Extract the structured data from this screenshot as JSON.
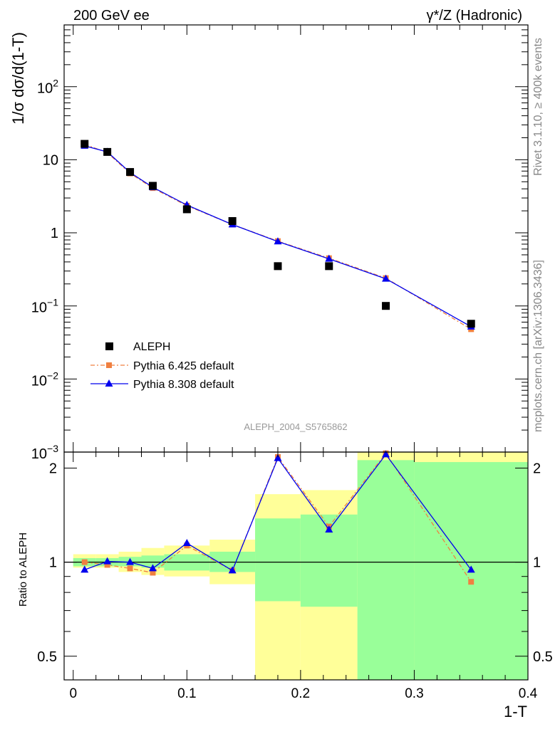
{
  "header": {
    "left": "200 GeV ee",
    "right": "γ*/Z (Hadronic)"
  },
  "side_text": {
    "rivet": "Rivet 3.1.10, ≥ 400k events",
    "mcplots": "mcplots.cern.ch [arXiv:1306.3436]"
  },
  "watermark": "ALEPH_2004_S5765862",
  "colors": {
    "data": "#000000",
    "pythia6": "#f08040",
    "pythia8": "#0000ee",
    "band_outer": "#ffff99",
    "band_inner": "#99ff99"
  },
  "chart_data": [
    {
      "type": "scatter",
      "panel": "main",
      "ylabel": "1/σ dσ/d(1-T)",
      "yscale": "log",
      "ylim": [
        0.001,
        700
      ],
      "xlim": [
        -0.008,
        0.4
      ],
      "ytick_labels": [
        {
          "value": 0.001,
          "base": "10",
          "exp": "−3"
        },
        {
          "value": 0.01,
          "base": "10",
          "exp": "−2"
        },
        {
          "value": 0.1,
          "base": "10",
          "exp": "−1"
        },
        {
          "value": 1,
          "base": "1",
          "exp": ""
        },
        {
          "value": 10,
          "base": "10",
          "exp": ""
        },
        {
          "value": 100,
          "base": "10",
          "exp": "2"
        }
      ],
      "legend": {
        "position": "bottom-left",
        "entries": [
          "ALEPH",
          "Pythia 6.425 default",
          "Pythia 8.308 default"
        ]
      },
      "series": [
        {
          "name": "ALEPH",
          "x": [
            0.01,
            0.03,
            0.05,
            0.07,
            0.1,
            0.14,
            0.18,
            0.225,
            0.275,
            0.35
          ],
          "y": [
            16.5,
            12.8,
            6.8,
            4.4,
            2.1,
            1.45,
            0.35,
            0.35,
            0.1,
            0.057
          ]
        },
        {
          "name": "Pythia 6.425 default",
          "x": [
            0.01,
            0.03,
            0.05,
            0.07,
            0.1,
            0.14,
            0.18,
            0.225,
            0.275,
            0.35
          ],
          "y": [
            16.3,
            12.5,
            6.5,
            4.1,
            2.35,
            1.3,
            0.77,
            0.45,
            0.24,
            0.048
          ]
        },
        {
          "name": "Pythia 8.308 default",
          "x": [
            0.01,
            0.03,
            0.05,
            0.07,
            0.1,
            0.14,
            0.18,
            0.225,
            0.275,
            0.35
          ],
          "y": [
            15.5,
            12.8,
            6.7,
            4.2,
            2.4,
            1.3,
            0.76,
            0.44,
            0.235,
            0.052
          ]
        }
      ]
    },
    {
      "type": "scatter",
      "panel": "ratio",
      "ylabel": "Ratio to ALEPH",
      "xlabel": "1-T",
      "xlim": [
        -0.008,
        0.4
      ],
      "ylim": [
        0.42,
        2.25
      ],
      "yticks": [
        0.5,
        1,
        2
      ],
      "ytick_labels": [
        "0.5",
        "1",
        "2"
      ],
      "xticks": [
        0,
        0.1,
        0.2,
        0.3,
        0.4
      ],
      "xtick_labels": [
        "0",
        "0.1",
        "0.2",
        "0.3",
        "0.4"
      ],
      "bands": [
        {
          "x0": 0.0,
          "x1": 0.02,
          "inner": [
            0.97,
            1.03
          ],
          "outer": [
            0.96,
            1.06
          ]
        },
        {
          "x0": 0.02,
          "x1": 0.04,
          "inner": [
            0.97,
            1.03
          ],
          "outer": [
            0.96,
            1.06
          ]
        },
        {
          "x0": 0.04,
          "x1": 0.06,
          "inner": [
            0.97,
            1.04
          ],
          "outer": [
            0.93,
            1.08
          ]
        },
        {
          "x0": 0.06,
          "x1": 0.08,
          "inner": [
            0.96,
            1.05
          ],
          "outer": [
            0.91,
            1.11
          ]
        },
        {
          "x0": 0.08,
          "x1": 0.12,
          "inner": [
            0.94,
            1.06
          ],
          "outer": [
            0.9,
            1.13
          ]
        },
        {
          "x0": 0.12,
          "x1": 0.16,
          "inner": [
            0.93,
            1.08
          ],
          "outer": [
            0.85,
            1.18
          ]
        },
        {
          "x0": 0.16,
          "x1": 0.2,
          "inner": [
            0.75,
            1.38
          ],
          "outer": [
            0.38,
            1.65
          ]
        },
        {
          "x0": 0.2,
          "x1": 0.25,
          "inner": [
            0.72,
            1.42
          ],
          "outer": [
            0.36,
            1.7
          ]
        },
        {
          "x0": 0.25,
          "x1": 0.3,
          "inner": [
            0.36,
            2.12
          ],
          "outer": [
            0.36,
            2.3
          ]
        },
        {
          "x0": 0.3,
          "x1": 0.4,
          "inner": [
            0.36,
            2.09
          ],
          "outer": [
            0.36,
            2.3
          ]
        }
      ],
      "series": [
        {
          "name": "Pythia 6.425 default",
          "x": [
            0.01,
            0.03,
            0.05,
            0.07,
            0.1,
            0.14,
            0.18,
            0.225,
            0.275,
            0.35
          ],
          "y": [
            1.0,
            0.98,
            0.955,
            0.925,
            1.13,
            0.94,
            2.17,
            1.3,
            2.23,
            0.865
          ]
        },
        {
          "name": "Pythia 8.308 default",
          "x": [
            0.01,
            0.03,
            0.05,
            0.07,
            0.1,
            0.14,
            0.18,
            0.225,
            0.275,
            0.35
          ],
          "y": [
            0.945,
            1.005,
            1.0,
            0.955,
            1.15,
            0.94,
            2.15,
            1.27,
            2.21,
            0.945
          ]
        }
      ]
    }
  ]
}
